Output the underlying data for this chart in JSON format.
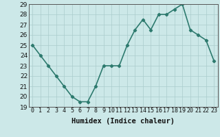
{
  "x": [
    0,
    1,
    2,
    3,
    4,
    5,
    6,
    7,
    8,
    9,
    10,
    11,
    12,
    13,
    14,
    15,
    16,
    17,
    18,
    19,
    20,
    21,
    22,
    23
  ],
  "y": [
    25,
    24,
    23,
    22,
    21,
    20,
    19.5,
    19.5,
    21,
    23,
    23,
    23,
    25,
    26.5,
    27.5,
    26.5,
    28,
    28,
    28.5,
    29,
    26.5,
    26,
    25.5,
    23.5
  ],
  "title": "",
  "xlabel": "Humidex (Indice chaleur)",
  "ylabel": "",
  "line_color": "#2d7a6e",
  "bg_color": "#cce8e8",
  "grid_color": "#aacccc",
  "ylim": [
    19,
    29
  ],
  "xlim": [
    -0.5,
    23.5
  ],
  "yticks": [
    19,
    20,
    21,
    22,
    23,
    24,
    25,
    26,
    27,
    28,
    29
  ],
  "xticks": [
    0,
    1,
    2,
    3,
    4,
    5,
    6,
    7,
    8,
    9,
    10,
    11,
    12,
    13,
    14,
    15,
    16,
    17,
    18,
    19,
    20,
    21,
    22,
    23
  ],
  "xtick_labels": [
    "0",
    "1",
    "2",
    "3",
    "4",
    "5",
    "6",
    "7",
    "8",
    "9",
    "10",
    "11",
    "12",
    "13",
    "14",
    "15",
    "16",
    "17",
    "18",
    "19",
    "20",
    "21",
    "22",
    "23"
  ],
  "marker": "D",
  "marker_size": 2.2,
  "line_width": 1.2,
  "xlabel_fontsize": 7.5,
  "tick_fontsize": 6.0,
  "ytick_fontsize": 6.5
}
